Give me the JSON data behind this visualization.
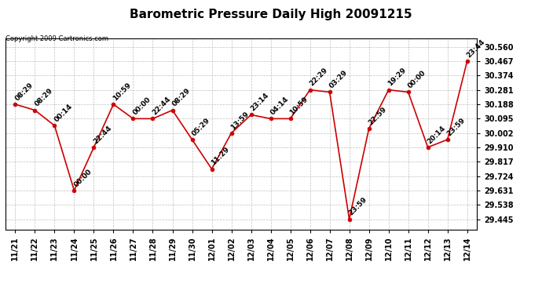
{
  "title": "Barometric Pressure Daily High 20091215",
  "copyright": "Copyright 2009 Cartronics.com",
  "x_labels": [
    "11/21",
    "11/22",
    "11/23",
    "11/24",
    "11/25",
    "11/26",
    "11/27",
    "11/28",
    "11/29",
    "11/30",
    "12/01",
    "12/02",
    "12/03",
    "12/04",
    "12/05",
    "12/06",
    "12/07",
    "12/08",
    "12/09",
    "12/10",
    "12/11",
    "12/12",
    "12/13",
    "12/14"
  ],
  "y_values": [
    30.188,
    30.15,
    30.05,
    29.631,
    29.91,
    30.188,
    30.095,
    30.095,
    30.15,
    29.96,
    29.77,
    30.002,
    30.12,
    30.095,
    30.095,
    30.281,
    30.267,
    29.445,
    30.03,
    30.281,
    30.267,
    29.91,
    29.96,
    30.467
  ],
  "point_labels": [
    "08:29",
    "08:29",
    "00:14",
    "00:00",
    "22:44",
    "10:59",
    "00:00",
    "22:44",
    "08:29",
    "05:29",
    "11:29",
    "13:59",
    "23:14",
    "04:14",
    "10:59",
    "22:29",
    "03:29",
    "23:59",
    "22:59",
    "19:29",
    "00:00",
    "20:14",
    "23:59",
    "23:44"
  ],
  "y_ticks": [
    29.445,
    29.538,
    29.631,
    29.724,
    29.817,
    29.91,
    30.002,
    30.095,
    30.188,
    30.281,
    30.374,
    30.467,
    30.56
  ],
  "y_min": 29.38,
  "y_max": 30.615,
  "line_color": "#cc0000",
  "marker_color": "#cc0000",
  "background_color": "#ffffff",
  "grid_color": "#b0b0b0",
  "title_fontsize": 11,
  "tick_fontsize": 7,
  "label_fontsize": 6.5,
  "copyright_fontsize": 6
}
